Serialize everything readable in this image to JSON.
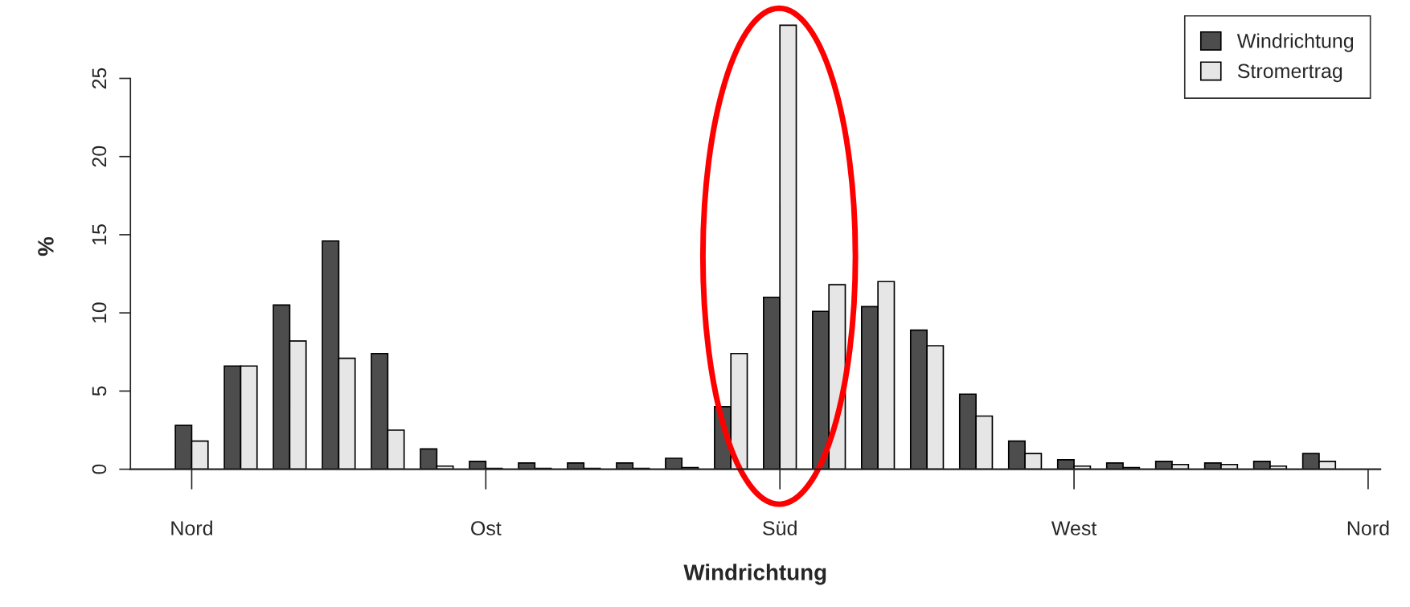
{
  "chart_data": {
    "type": "bar",
    "xlabel": "Windrichtung",
    "ylabel": "%",
    "categories": [
      "Nord",
      null,
      null,
      null,
      null,
      null,
      "Ost",
      null,
      null,
      null,
      null,
      null,
      "Süd",
      null,
      null,
      null,
      null,
      null,
      "West",
      null,
      null,
      null,
      null,
      null
    ],
    "annotations": [
      "Nord"
    ],
    "series": [
      {
        "name": "Windrichtung",
        "color": "#4d4d4d",
        "values": [
          2.8,
          6.6,
          10.5,
          14.6,
          7.4,
          1.3,
          0.5,
          0.4,
          0.4,
          0.4,
          0.7,
          4.0,
          11.0,
          10.1,
          10.4,
          8.9,
          4.8,
          1.8,
          0.6,
          0.4,
          0.5,
          0.4,
          0.5,
          1.0
        ]
      },
      {
        "name": "Stromertrag",
        "color": "#e6e6e6",
        "values": [
          1.8,
          6.6,
          8.2,
          7.1,
          2.5,
          0.2,
          0.05,
          0.05,
          0.05,
          0.05,
          0.1,
          7.4,
          28.4,
          11.8,
          12.0,
          7.9,
          3.4,
          1.0,
          0.2,
          0.1,
          0.3,
          0.3,
          0.2,
          0.5
        ]
      }
    ],
    "ylim": [
      0,
      28.5
    ],
    "yticks": [
      0,
      5,
      10,
      15,
      20,
      25
    ],
    "grid": false,
    "legend": "top right"
  }
}
